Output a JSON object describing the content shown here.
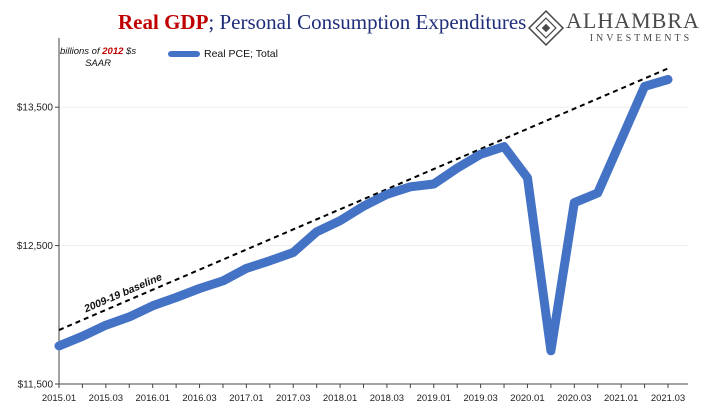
{
  "header": {
    "title_part1": "Real GDP",
    "title_sep": "; ",
    "title_part2": "Personal Consumption Expenditures"
  },
  "logo": {
    "name": "ALHAMBRA",
    "subtitle": "INVESTMENTS"
  },
  "units_note": {
    "line1_pre": "billions of ",
    "line1_year": "2012",
    "line1_post": " $s",
    "line2": "SAAR"
  },
  "colors": {
    "title_red": "#c00000",
    "title_navy": "#1f2d7a",
    "series_blue": "#4472c4",
    "baseline": "#000000",
    "grid": "#eeeeee"
  },
  "chart_data": {
    "type": "line",
    "title": "Real GDP; Personal Consumption Expenditures",
    "ylabel": "billions of 2012 $s SAAR",
    "ylim": [
      11500,
      14000
    ],
    "yticks": [
      "$11,500",
      "$12,500",
      "$13,500"
    ],
    "ytick_values": [
      11500,
      12500,
      13500
    ],
    "grid": true,
    "legend_position": "top-left",
    "x_tick_labels": [
      "2015.01",
      "2015.03",
      "2016.01",
      "2016.03",
      "2017.01",
      "2017.03",
      "2018.01",
      "2018.03",
      "2019.01",
      "2019.03",
      "2020.01",
      "2020.03",
      "2021.01",
      "2021.03"
    ],
    "series": [
      {
        "name": "Real PCE; Total",
        "x": [
          "2015.01",
          "2015.02",
          "2015.03",
          "2015.04",
          "2016.01",
          "2016.02",
          "2016.03",
          "2016.04",
          "2017.01",
          "2017.02",
          "2017.03",
          "2017.04",
          "2018.01",
          "2018.02",
          "2018.03",
          "2018.04",
          "2019.01",
          "2019.02",
          "2019.03",
          "2019.04",
          "2020.01",
          "2020.02",
          "2020.03",
          "2020.04",
          "2021.01",
          "2021.02",
          "2021.03"
        ],
        "values": [
          11775,
          11845,
          11925,
          11985,
          12065,
          12125,
          12190,
          12245,
          12335,
          12390,
          12450,
          12600,
          12680,
          12785,
          12870,
          12925,
          12945,
          13060,
          13160,
          13215,
          12990,
          11740,
          12810,
          12880,
          13265,
          13650,
          13700
        ]
      },
      {
        "name": "2009-19 baseline",
        "style": "dashed",
        "x": [
          "2015.01",
          "2021.03"
        ],
        "values": [
          11890,
          13780
        ]
      }
    ],
    "annotations": [
      "2009-19 baseline"
    ]
  }
}
